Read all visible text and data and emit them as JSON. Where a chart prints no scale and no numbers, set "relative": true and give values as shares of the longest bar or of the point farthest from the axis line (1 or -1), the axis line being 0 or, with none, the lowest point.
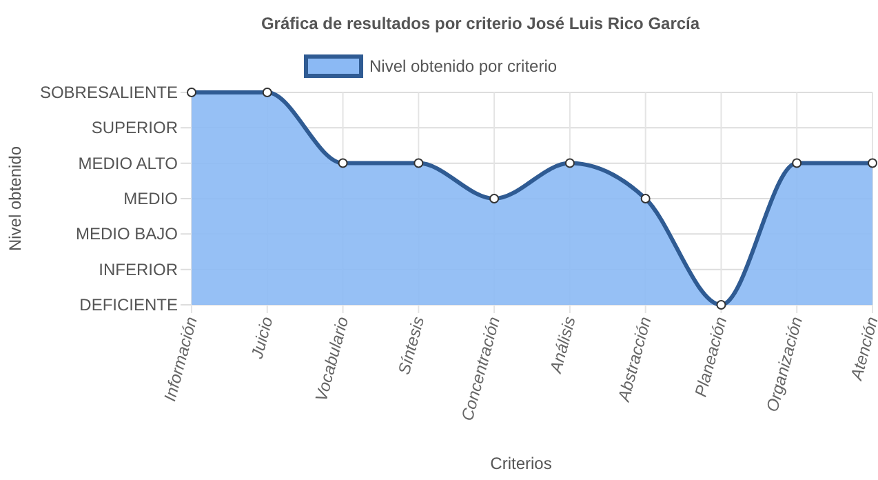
{
  "chart_data": {
    "type": "area",
    "title": "Gráfica de resultados por criterio José Luis Rico García",
    "xlabel": "Criterios",
    "annotations": [
      "Nivel obtenido"
    ],
    "categories": [
      "Información",
      "Juicio",
      "Vocabulario",
      "Síntesis",
      "Concentración",
      "Análisis",
      "Abstracción",
      "Planeación",
      "Organización",
      "Atención"
    ],
    "series": [
      {
        "name": "Nivel obtenido por criterio",
        "color": "#2f5b93",
        "values": [
          1,
          1,
          0.667,
          0.667,
          0.5,
          0.667,
          0.5,
          0,
          0.667,
          0.667
        ]
      }
    ],
    "relative": true,
    "y_categories": [
      "SOBRESALIENTE",
      "SUPERIOR",
      "MEDIO ALTO",
      "MEDIO",
      "MEDIO BAJO",
      "INFERIOR",
      "DEFICIENTE"
    ],
    "grid": true,
    "legend": "top",
    "marker": "circle"
  }
}
